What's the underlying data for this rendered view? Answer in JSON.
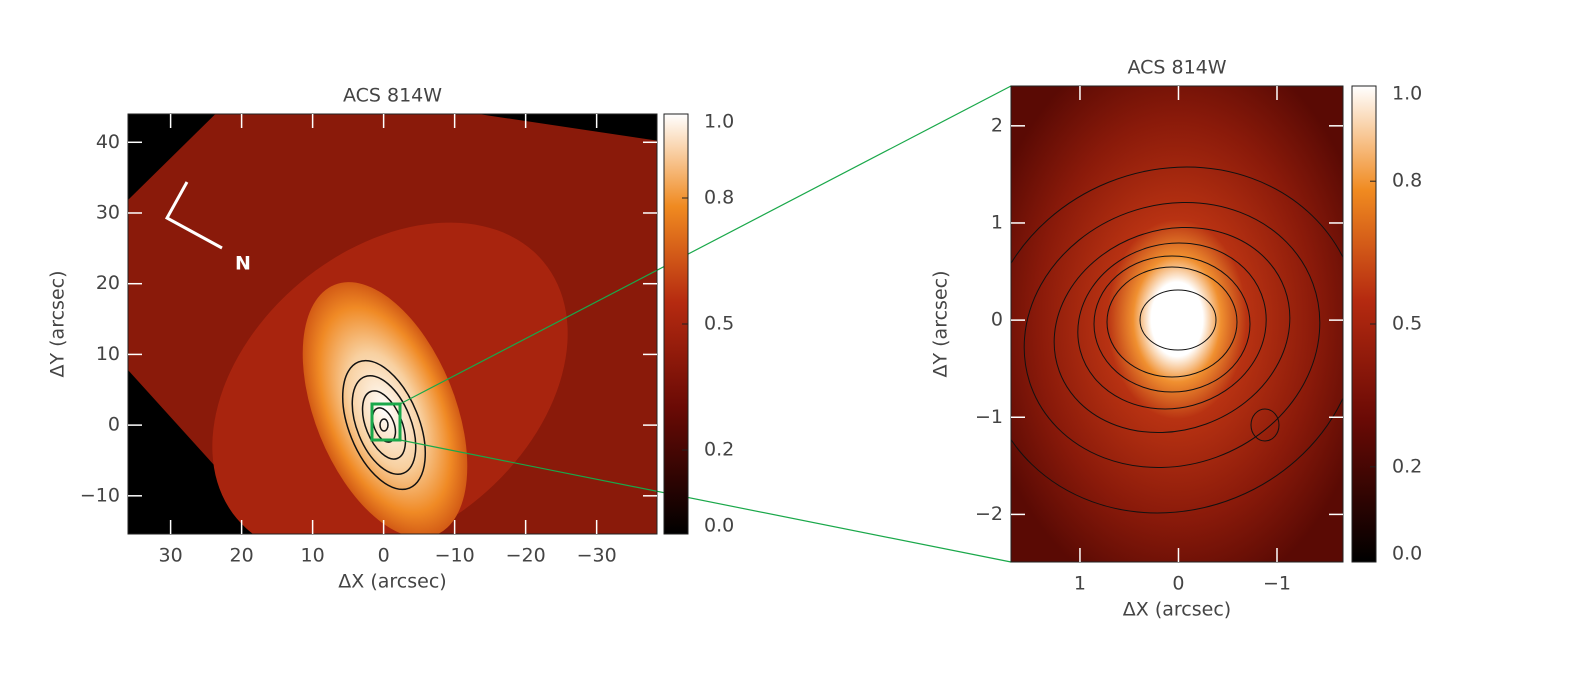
{
  "chart_data": [
    {
      "type": "image",
      "title": "ACS 814W",
      "xlabel": "ΔX (arcsec)",
      "ylabel": "ΔY (arcsec)",
      "xlim": [
        36,
        -38.5
      ],
      "ylim": [
        -15.4,
        44
      ],
      "xticks": [
        30,
        20,
        10,
        0,
        {
          "value": -10,
          "label": "−10"
        },
        {
          "value": -20,
          "label": "−20"
        },
        {
          "value": -30,
          "label": "−30"
        }
      ],
      "yticks": [
        {
          "value": -10,
          "label": "−10"
        },
        0,
        10,
        20,
        30,
        40
      ],
      "colorbar": {
        "clim": [
          0,
          1
        ],
        "ticks": [
          {
            "value": 0,
            "label": "0.0"
          },
          0.2,
          0.5,
          0.8,
          {
            "value": 1,
            "label": "1.0"
          }
        ]
      },
      "annotations": [
        "N"
      ]
    },
    {
      "type": "image",
      "title": "ACS 814W",
      "xlabel": "ΔX (arcsec)",
      "ylabel": "ΔY (arcsec)",
      "xlim": [
        1.7,
        -1.67
      ],
      "ylim": [
        -2.49,
        2.41
      ],
      "xticks": [
        1,
        0,
        {
          "value": -1,
          "label": "−1"
        }
      ],
      "yticks": [
        {
          "value": -2,
          "label": "−2"
        },
        {
          "value": -1,
          "label": "−1"
        },
        0,
        1,
        2
      ],
      "colorbar": {
        "clim": [
          0,
          1
        ],
        "ticks": [
          {
            "value": 0,
            "label": "0.0"
          },
          0.2,
          0.5,
          0.8,
          {
            "value": 1,
            "label": "1.0"
          }
        ]
      }
    }
  ]
}
